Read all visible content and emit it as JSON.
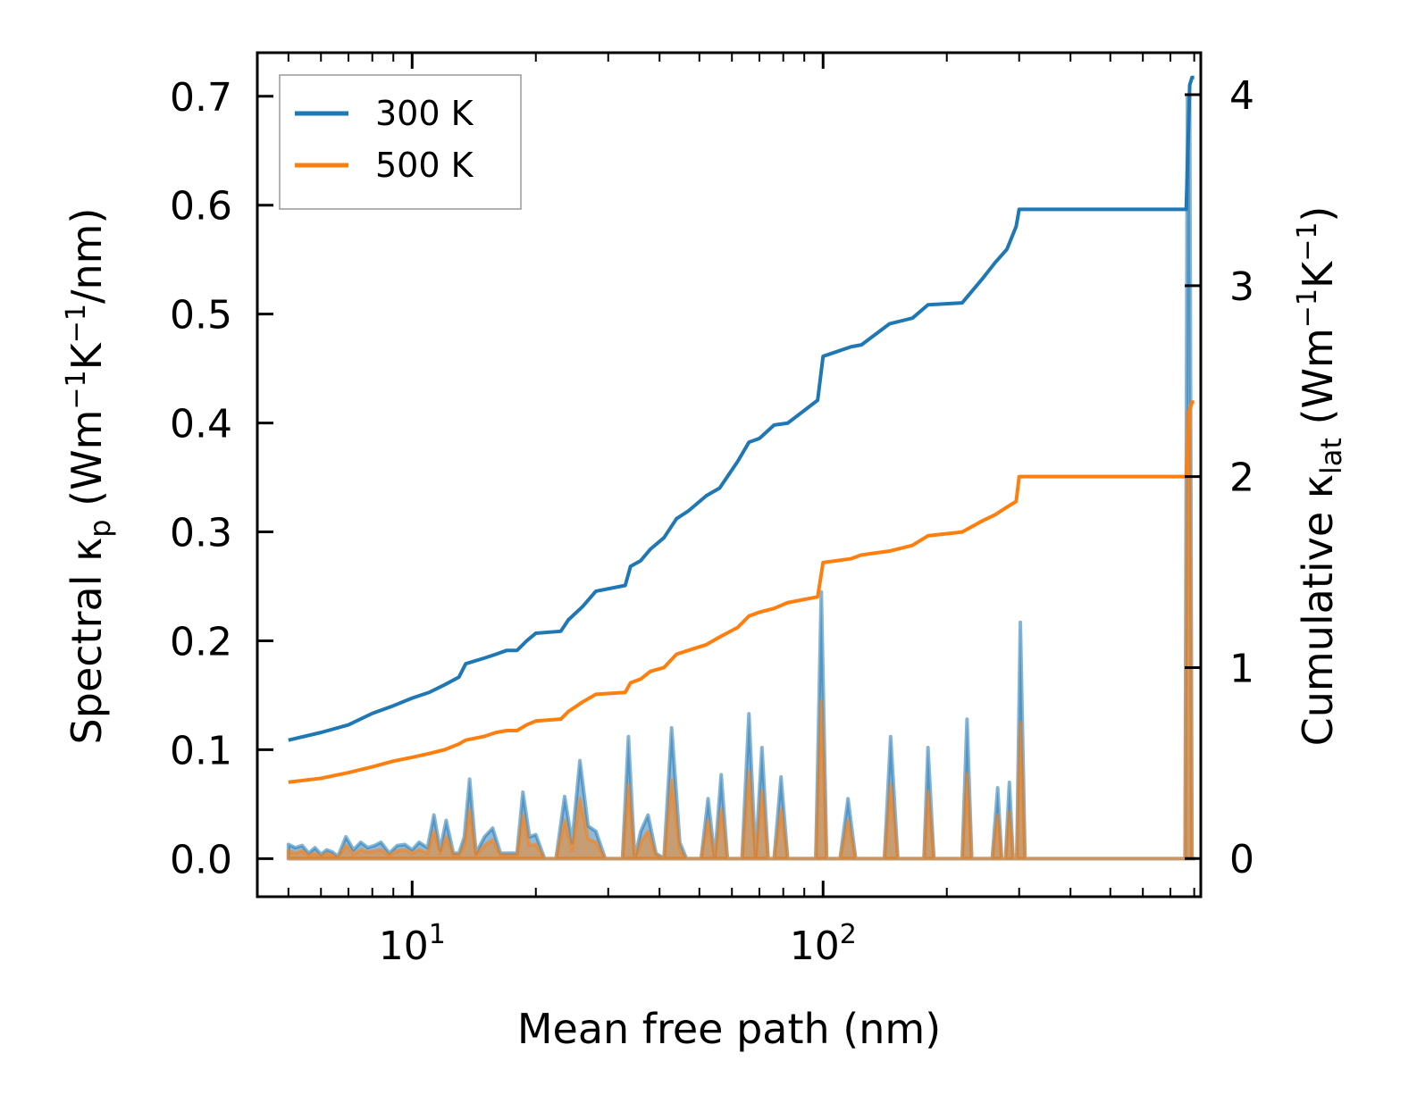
{
  "chart_data": {
    "type": "line",
    "xscale": "log",
    "xlabel": "Mean free path (nm)",
    "ylabel_left": "Spectral κ",
    "ylabel_left_sub": "p",
    "ylabel_left_units_open": " (Wm",
    "ylabel_left_units_mid": "K",
    "ylabel_left_units_close": "/nm)",
    "ylabel_right": "Cumulative κ",
    "ylabel_right_sub": "lat",
    "ylabel_right_units_open": " (Wm",
    "ylabel_right_units_mid": "K",
    "ylabel_right_units_close": ")",
    "exponent_neg1": "−1",
    "xlim": [
      4.2,
      830
    ],
    "ylim_left": [
      -0.035,
      0.74
    ],
    "ylim_right": [
      -0.2,
      4.22
    ],
    "xticks": [
      {
        "value": 10,
        "base": "10",
        "exp": "1"
      },
      {
        "value": 100,
        "base": "10",
        "exp": "2"
      }
    ],
    "yticks_left": [
      "0.0",
      "0.1",
      "0.2",
      "0.3",
      "0.4",
      "0.5",
      "0.6",
      "0.7"
    ],
    "yticks_right": [
      "0",
      "1",
      "2",
      "3",
      "4"
    ],
    "legend": [
      {
        "label": "300 K",
        "color": "#1f77b4"
      },
      {
        "label": "500 K",
        "color": "#ff7f0e"
      }
    ],
    "cumulative": [
      {
        "name": "300 K",
        "axis": "right",
        "color": "#1f77b4",
        "x": [
          5,
          6,
          7,
          8,
          9,
          10,
          11,
          12,
          13,
          13.5,
          15,
          16,
          17,
          18,
          19,
          20,
          23,
          24,
          26,
          28,
          33,
          34,
          36,
          38,
          41,
          44,
          47,
          52,
          56,
          62,
          66,
          70,
          76,
          82,
          97,
          100,
          117,
          124,
          145,
          165,
          180,
          218,
          245,
          262,
          280,
          295,
          300,
          765,
          780,
          790,
          800
        ],
        "y": [
          0.62,
          0.66,
          0.7,
          0.76,
          0.8,
          0.84,
          0.87,
          0.91,
          0.95,
          1.02,
          1.05,
          1.07,
          1.09,
          1.09,
          1.14,
          1.18,
          1.19,
          1.25,
          1.32,
          1.4,
          1.43,
          1.53,
          1.56,
          1.62,
          1.68,
          1.78,
          1.82,
          1.9,
          1.94,
          2.08,
          2.18,
          2.2,
          2.27,
          2.28,
          2.4,
          2.63,
          2.68,
          2.69,
          2.8,
          2.83,
          2.9,
          2.91,
          3.04,
          3.12,
          3.19,
          3.31,
          3.4,
          3.4,
          4.05,
          4.09,
          4.09
        ]
      },
      {
        "name": "500 K",
        "axis": "right",
        "color": "#ff7f0e",
        "x": [
          5,
          6,
          7,
          8,
          9,
          10,
          11,
          12,
          13,
          13.5,
          15,
          16,
          17,
          18,
          19,
          20,
          23,
          24,
          26,
          28,
          33,
          34,
          36,
          38,
          41,
          44,
          47,
          52,
          56,
          62,
          66,
          70,
          76,
          82,
          97,
          100,
          117,
          124,
          145,
          165,
          180,
          218,
          245,
          262,
          280,
          295,
          300,
          765,
          780,
          790,
          800
        ],
        "y": [
          0.4,
          0.42,
          0.45,
          0.48,
          0.51,
          0.53,
          0.55,
          0.57,
          0.6,
          0.62,
          0.64,
          0.66,
          0.67,
          0.67,
          0.7,
          0.72,
          0.73,
          0.77,
          0.82,
          0.86,
          0.87,
          0.92,
          0.94,
          0.98,
          1.0,
          1.07,
          1.09,
          1.12,
          1.16,
          1.21,
          1.27,
          1.29,
          1.31,
          1.34,
          1.37,
          1.55,
          1.57,
          1.59,
          1.61,
          1.64,
          1.69,
          1.71,
          1.77,
          1.8,
          1.84,
          1.87,
          2.0,
          2.0,
          2.35,
          2.39,
          2.39
        ]
      }
    ],
    "spectral": [
      {
        "name": "300 K",
        "axis": "left",
        "color": "#1f77b4",
        "x": [
          5,
          5.2,
          5.4,
          5.6,
          5.8,
          6,
          6.2,
          6.4,
          6.6,
          6.9,
          7.2,
          7.5,
          7.8,
          8.1,
          8.4,
          8.8,
          9.2,
          9.6,
          10,
          10.4,
          10.9,
          11.3,
          11.7,
          12.1,
          12.6,
          13,
          13.4,
          13.8,
          14.3,
          15,
          15.7,
          16.4,
          17.2,
          18,
          18.6,
          19.3,
          20,
          21,
          22.4,
          23.5,
          24.5,
          25.6,
          26.8,
          28,
          29.5,
          31,
          32.5,
          33.6,
          34.8,
          36,
          37.5,
          39.2,
          41,
          42.8,
          44.8,
          46.5,
          48.5,
          50.5,
          52.5,
          54.5,
          56.5,
          58.5,
          61,
          63.5,
          66,
          68.5,
          71,
          73.5,
          76,
          79,
          82,
          86,
          91,
          96,
          99,
          102,
          106,
          110,
          115,
          120,
          127,
          134,
          141,
          146,
          152,
          160,
          168,
          176,
          180,
          186,
          196,
          208,
          218,
          224,
          230,
          240,
          250,
          258,
          266,
          272,
          278,
          284,
          290,
          296,
          302,
          310,
          400,
          600,
          760,
          770,
          780,
          790,
          800
        ],
        "y": [
          0.013,
          0.01,
          0.012,
          0.005,
          0.01,
          0.004,
          0.008,
          0.006,
          0.002,
          0.02,
          0.008,
          0.015,
          0.01,
          0.012,
          0.015,
          0.005,
          0.012,
          0.013,
          0.008,
          0.015,
          0.01,
          0.04,
          0.008,
          0.035,
          0.005,
          0.005,
          0.02,
          0.073,
          0.005,
          0.02,
          0.028,
          0.005,
          0.005,
          0.005,
          0.061,
          0.02,
          0.022,
          0.0,
          0.0,
          0.057,
          0.015,
          0.09,
          0.03,
          0.025,
          0.0,
          0.0,
          0.0,
          0.112,
          0.0,
          0.025,
          0.04,
          0.005,
          0.0,
          0.12,
          0.015,
          0.0,
          0.0,
          0.0,
          0.055,
          0.0,
          0.077,
          0.0,
          0.0,
          0.0,
          0.133,
          0.0,
          0.102,
          0.0,
          0.0,
          0.075,
          0.0,
          0.0,
          0.0,
          0.0,
          0.245,
          0.0,
          0.0,
          0.0,
          0.055,
          0.0,
          0.0,
          0.0,
          0.0,
          0.112,
          0.0,
          0.0,
          0.0,
          0.0,
          0.102,
          0.0,
          0.0,
          0.0,
          0.0,
          0.128,
          0.0,
          0.0,
          0.0,
          0.0,
          0.065,
          0.0,
          0.0,
          0.07,
          0.0,
          0.0,
          0.217,
          0.0,
          0.0,
          0.0,
          0.0,
          0.7,
          0.7,
          0.0,
          0.0
        ]
      },
      {
        "name": "500 K",
        "axis": "left",
        "color": "#ff7f0e",
        "x": [
          5,
          5.2,
          5.4,
          5.6,
          5.8,
          6,
          6.2,
          6.4,
          6.6,
          6.9,
          7.2,
          7.5,
          7.8,
          8.1,
          8.4,
          8.8,
          9.2,
          9.6,
          10,
          10.4,
          10.9,
          11.3,
          11.7,
          12.1,
          12.6,
          13,
          13.4,
          13.8,
          14.3,
          15,
          15.7,
          16.4,
          17.2,
          18,
          18.6,
          19.3,
          20,
          21,
          22.4,
          23.5,
          24.5,
          25.6,
          26.8,
          28,
          29.5,
          31,
          32.5,
          33.6,
          34.8,
          36,
          37.5,
          39.2,
          41,
          42.8,
          44.8,
          46.5,
          48.5,
          50.5,
          52.5,
          54.5,
          56.5,
          58.5,
          61,
          63.5,
          66,
          68.5,
          71,
          73.5,
          76,
          79,
          82,
          86,
          91,
          96,
          99,
          102,
          106,
          110,
          115,
          120,
          127,
          134,
          141,
          146,
          152,
          160,
          168,
          176,
          180,
          186,
          196,
          208,
          218,
          224,
          230,
          240,
          250,
          258,
          266,
          272,
          278,
          284,
          290,
          296,
          302,
          310,
          400,
          600,
          760,
          770,
          780,
          790,
          800
        ],
        "y": [
          0.007,
          0.005,
          0.007,
          0.003,
          0.005,
          0.002,
          0.005,
          0.003,
          0.001,
          0.012,
          0.004,
          0.008,
          0.006,
          0.007,
          0.008,
          0.003,
          0.007,
          0.008,
          0.005,
          0.008,
          0.005,
          0.025,
          0.005,
          0.02,
          0.003,
          0.003,
          0.012,
          0.045,
          0.003,
          0.012,
          0.017,
          0.003,
          0.003,
          0.003,
          0.04,
          0.012,
          0.013,
          0.0,
          0.0,
          0.035,
          0.008,
          0.055,
          0.018,
          0.015,
          0.0,
          0.0,
          0.0,
          0.068,
          0.0,
          0.015,
          0.025,
          0.003,
          0.0,
          0.072,
          0.008,
          0.0,
          0.0,
          0.0,
          0.035,
          0.0,
          0.045,
          0.0,
          0.0,
          0.0,
          0.08,
          0.0,
          0.062,
          0.0,
          0.0,
          0.045,
          0.0,
          0.0,
          0.0,
          0.0,
          0.145,
          0.0,
          0.0,
          0.0,
          0.035,
          0.0,
          0.0,
          0.0,
          0.0,
          0.068,
          0.0,
          0.0,
          0.0,
          0.0,
          0.062,
          0.0,
          0.0,
          0.0,
          0.0,
          0.078,
          0.0,
          0.0,
          0.0,
          0.0,
          0.04,
          0.0,
          0.0,
          0.043,
          0.0,
          0.0,
          0.125,
          0.0,
          0.0,
          0.0,
          0.0,
          0.41,
          0.41,
          0.0,
          0.0
        ]
      }
    ]
  }
}
